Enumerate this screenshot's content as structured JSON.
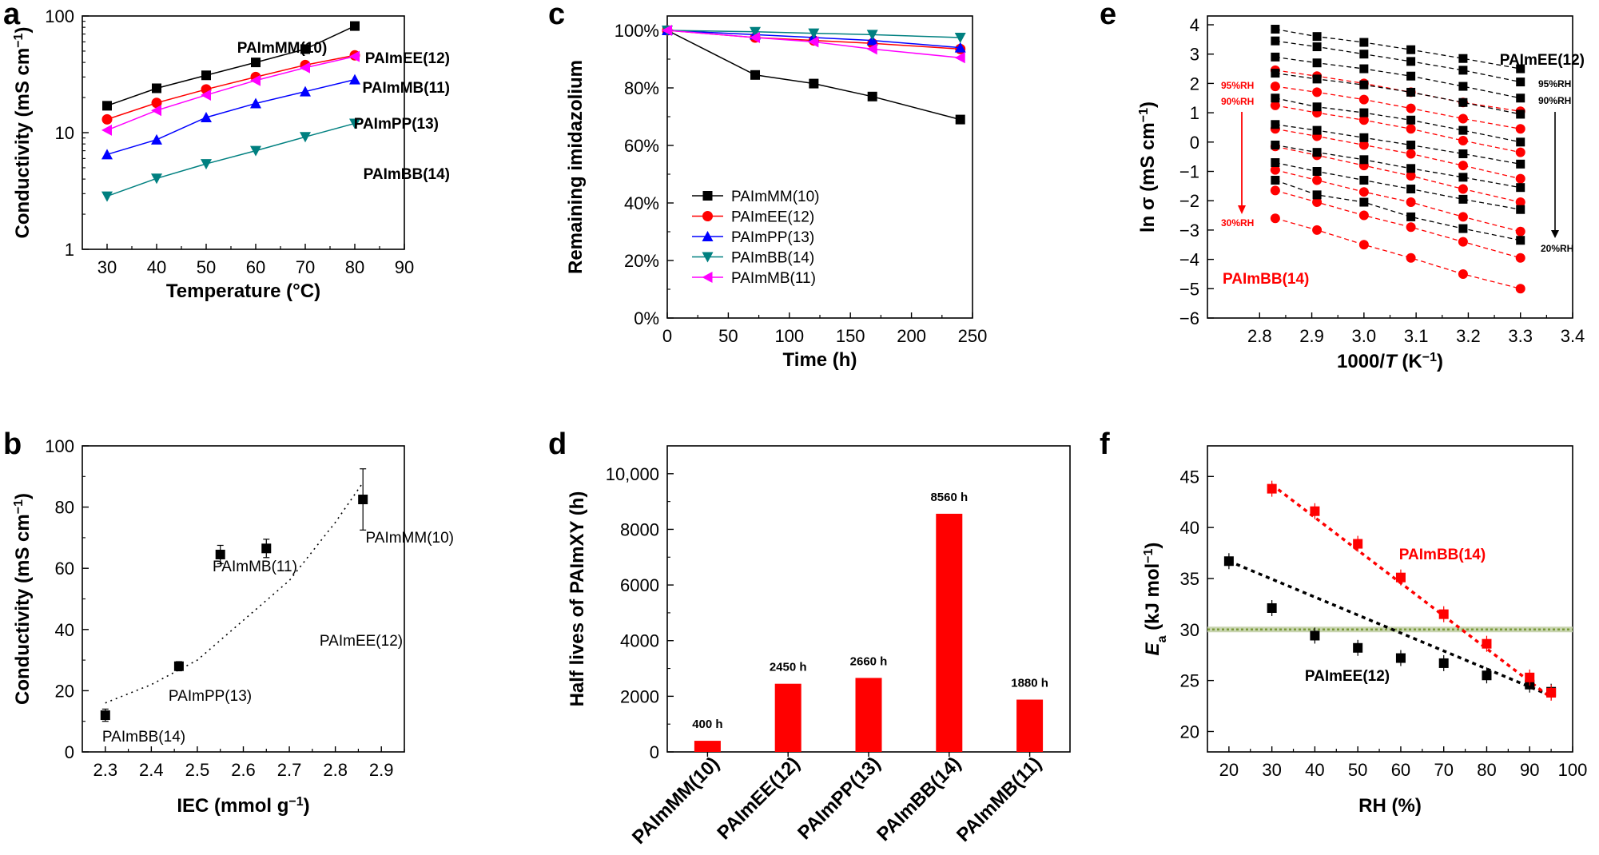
{
  "panel_labels": {
    "a": "a",
    "b": "b",
    "c": "c",
    "d": "d",
    "e": "e",
    "f": "f"
  },
  "chart_data": [
    {
      "id": "a",
      "type": "line",
      "yscale": "log",
      "xlabel": "Temperature (°C)",
      "ylabel": "Conductivity (mS cm",
      "ylabel_sup": "−1",
      "ylabel_end": ")",
      "xlim": [
        25,
        90
      ],
      "ylim": [
        1,
        100
      ],
      "xticks": [
        "30",
        "40",
        "50",
        "60",
        "70",
        "80",
        "90"
      ],
      "yticks": [
        "1",
        "10",
        "100"
      ],
      "series": [
        {
          "name": "PAImMM(10)",
          "color": "#000000",
          "marker": "square",
          "x": [
            30,
            40,
            50,
            60,
            70,
            80
          ],
          "y": [
            17,
            24,
            31,
            40,
            52,
            82
          ]
        },
        {
          "name": "PAImEE(12)",
          "color": "#ff0000",
          "marker": "circle",
          "x": [
            30,
            40,
            50,
            60,
            70,
            80
          ],
          "y": [
            13,
            18,
            23.5,
            30,
            38,
            46
          ]
        },
        {
          "name": "PAImMB(11)",
          "color": "#ff00ff",
          "marker": "tri-left",
          "x": [
            30,
            40,
            50,
            60,
            70,
            80
          ],
          "y": [
            10.5,
            15.5,
            21,
            28,
            36,
            45
          ]
        },
        {
          "name": "PAImPP(13)",
          "color": "#0000ff",
          "marker": "tri-up",
          "x": [
            30,
            40,
            50,
            60,
            70,
            80
          ],
          "y": [
            6.5,
            8.7,
            13.5,
            17.8,
            22.5,
            28.5
          ]
        },
        {
          "name": "PAImBB(14)",
          "color": "#008080",
          "marker": "tri-down",
          "x": [
            30,
            40,
            50,
            60,
            70,
            80
          ],
          "y": [
            2.85,
            4.05,
            5.4,
            7.0,
            9.2,
            12
          ]
        }
      ],
      "annotations": [
        "PAImMM(10)",
        "PAImEE(12)",
        "PAImMB(11)",
        "PAImPP(13)",
        "PAImBB(14)"
      ]
    },
    {
      "id": "b",
      "type": "scatter",
      "xlabel": "IEC (mmol g",
      "xlabel_sup": "−1",
      "xlabel_end": ")",
      "ylabel": "Conductivity (mS cm",
      "ylabel_sup": "−1",
      "ylabel_end": ")",
      "xlim": [
        2.25,
        2.95
      ],
      "ylim": [
        0,
        100
      ],
      "xticks": [
        "2.3",
        "2.4",
        "2.5",
        "2.6",
        "2.7",
        "2.8",
        "2.9"
      ],
      "yticks": [
        "0",
        "20",
        "40",
        "60",
        "80",
        "100"
      ],
      "points": [
        {
          "label": "PAImBB(14)",
          "x": 2.3,
          "y": 12
        },
        {
          "label": "PAImPP(13)",
          "x": 2.46,
          "y": 28
        },
        {
          "label": "PAImMB(11)",
          "x": 2.55,
          "y": 64.5
        },
        {
          "label": "PAImEE(12)",
          "x": 2.65,
          "y": 66.5
        },
        {
          "label": "PAImMM(10)",
          "x": 2.86,
          "y": 82.5
        }
      ],
      "fit": {
        "x": [
          2.3,
          2.4,
          2.5,
          2.6,
          2.7,
          2.8,
          2.86
        ],
        "y": [
          16,
          22,
          30,
          43,
          56,
          75,
          88
        ]
      }
    },
    {
      "id": "c",
      "type": "line",
      "xlabel": "Time (h)",
      "ylabel": "Remaining imidazolium",
      "xlim": [
        0,
        250
      ],
      "ylim": [
        0,
        105
      ],
      "xticks": [
        "0",
        "50",
        "100",
        "150",
        "200",
        "250"
      ],
      "yticks": [
        "0%",
        "20%",
        "40%",
        "60%",
        "80%",
        "100%"
      ],
      "series": [
        {
          "name": "PAImMM(10)",
          "color": "#000000",
          "marker": "square",
          "x": [
            0,
            72,
            120,
            168,
            240
          ],
          "y": [
            100,
            84.5,
            81.5,
            77,
            69
          ]
        },
        {
          "name": "PAImEE(12)",
          "color": "#ff0000",
          "marker": "circle",
          "x": [
            0,
            72,
            120,
            168,
            240
          ],
          "y": [
            100,
            97.5,
            96.5,
            95.5,
            93.5
          ]
        },
        {
          "name": "PAImPP(13)",
          "color": "#0000ff",
          "marker": "tri-up",
          "x": [
            0,
            72,
            120,
            168,
            240
          ],
          "y": [
            100,
            98.5,
            97.5,
            96.5,
            94
          ]
        },
        {
          "name": "PAImBB(14)",
          "color": "#008080",
          "marker": "tri-down",
          "x": [
            0,
            72,
            120,
            168,
            240
          ],
          "y": [
            100,
            99.5,
            99,
            98.5,
            97.5
          ]
        },
        {
          "name": "PAImMB(11)",
          "color": "#ff00ff",
          "marker": "tri-left",
          "x": [
            0,
            72,
            120,
            168,
            240
          ],
          "y": [
            100,
            97.5,
            96,
            93.5,
            90.5
          ]
        }
      ]
    },
    {
      "id": "d",
      "type": "bar",
      "ylabel": "Half lives of PAImXY (h)",
      "ylim": [
        0,
        11000
      ],
      "yticks": [
        "0",
        "2000",
        "4000",
        "6000",
        "8000",
        "10,000"
      ],
      "categories": [
        "PAImMM(10)",
        "PAImEE(12)",
        "PAImPP(13)",
        "PAImBB(14)",
        "PAImMB(11)"
      ],
      "values": [
        400,
        2450,
        2660,
        8560,
        1880
      ],
      "value_labels": [
        "400 h",
        "2450 h",
        "2660 h",
        "8560 h",
        "1880 h"
      ],
      "color": "#ff0000"
    },
    {
      "id": "e",
      "type": "line",
      "xlabel": "1000/",
      "xlabel_it": "T",
      "xlabel_unit": " (K",
      "xlabel_sup": "−1",
      "xlabel_end": ")",
      "ylabel": "ln σ (mS cm",
      "ylabel_sup": "−1",
      "ylabel_end": ")",
      "xlim": [
        2.7,
        3.4
      ],
      "ylim": [
        -6,
        4.3
      ],
      "xticks": [
        "2.8",
        "2.9",
        "3.0",
        "3.1",
        "3.2",
        "3.3",
        "3.4"
      ],
      "yticks": [
        "−6",
        "−5",
        "−4",
        "−3",
        "−2",
        "−1",
        "0",
        "1",
        "2",
        "3",
        "4"
      ],
      "x": [
        2.83,
        2.91,
        3.0,
        3.09,
        3.19,
        3.3
      ],
      "black_series": [
        {
          "name": "PAImEE(12) 95%RH",
          "y": [
            3.85,
            3.6,
            3.4,
            3.15,
            2.85,
            2.5
          ]
        },
        {
          "name": "PAImEE(12) 90%RH",
          "y": [
            3.45,
            3.25,
            3.0,
            2.75,
            2.45,
            2.05
          ]
        },
        {
          "name": "PAImEE(12) 80%RH",
          "y": [
            2.9,
            2.7,
            2.5,
            2.25,
            1.9,
            1.5
          ]
        },
        {
          "name": "PAImEE(12) 70%RH",
          "y": [
            2.35,
            2.15,
            1.95,
            1.7,
            1.35,
            0.95
          ]
        },
        {
          "name": "PAImEE(12) 60%RH",
          "y": [
            1.5,
            1.2,
            1.0,
            0.75,
            0.4,
            0.0
          ]
        },
        {
          "name": "PAImEE(12) 50%RH",
          "y": [
            0.6,
            0.4,
            0.15,
            -0.1,
            -0.4,
            -0.75
          ]
        },
        {
          "name": "PAImEE(12) 40%RH",
          "y": [
            -0.1,
            -0.35,
            -0.6,
            -0.9,
            -1.2,
            -1.55
          ]
        },
        {
          "name": "PAImEE(12) 30%RH",
          "y": [
            -0.7,
            -1.0,
            -1.3,
            -1.6,
            -1.95,
            -2.3
          ]
        },
        {
          "name": "PAImEE(12) 20%RH",
          "y": [
            -1.3,
            -1.8,
            -2.05,
            -2.55,
            -2.95,
            -3.35
          ]
        }
      ],
      "red_series": [
        {
          "name": "PAImBB(14) 95%RH",
          "y": [
            2.45,
            2.25,
            2.0,
            1.7,
            1.35,
            1.05
          ]
        },
        {
          "name": "PAImBB(14) 90%RH",
          "y": [
            1.9,
            1.7,
            1.45,
            1.15,
            0.8,
            0.45
          ]
        },
        {
          "name": "PAImBB(14) 80%RH",
          "y": [
            1.25,
            1.0,
            0.75,
            0.45,
            0.05,
            -0.35
          ]
        },
        {
          "name": "PAImBB(14) 70%RH",
          "y": [
            0.45,
            0.2,
            -0.1,
            -0.4,
            -0.8,
            -1.25
          ]
        },
        {
          "name": "PAImBB(14) 60%RH",
          "y": [
            -0.15,
            -0.45,
            -0.8,
            -1.15,
            -1.6,
            -2.05
          ]
        },
        {
          "name": "PAImBB(14) 50%RH",
          "y": [
            -0.95,
            -1.3,
            -1.7,
            -2.05,
            -2.55,
            -3.05
          ]
        },
        {
          "name": "PAImBB(14) 40%RH",
          "y": [
            -1.65,
            -2.05,
            -2.5,
            -2.9,
            -3.4,
            -3.95
          ]
        },
        {
          "name": "PAImBB(14) 30%RH",
          "y": [
            -2.6,
            -3.0,
            -3.5,
            -3.95,
            -4.5,
            -5.0
          ]
        }
      ],
      "annotations": {
        "black_name": "PAImEE(12)",
        "red_name": "PAImBB(14)",
        "black_top": "95%RH",
        "black_second": "90%RH",
        "black_bottom": "20%RH",
        "red_top": "95%RH",
        "red_second": "90%RH",
        "red_bottom": "30%RH"
      }
    },
    {
      "id": "f",
      "type": "scatter",
      "xlabel": "RH (%)",
      "ylabel_it": "E",
      "ylabel_sub": "a",
      "ylabel": " (kJ mol",
      "ylabel_sup": "−1",
      "ylabel_end": ")",
      "xlim": [
        15,
        100
      ],
      "ylim": [
        18,
        48
      ],
      "xticks": [
        "20",
        "30",
        "40",
        "50",
        "60",
        "70",
        "80",
        "90",
        "100"
      ],
      "yticks": [
        "20",
        "25",
        "30",
        "35",
        "40",
        "45"
      ],
      "series": [
        {
          "name": "PAImEE(12)",
          "color": "#000000",
          "marker": "square",
          "x": [
            20,
            30,
            40,
            50,
            60,
            70,
            80,
            90,
            95
          ],
          "y": [
            36.7,
            32.1,
            29.4,
            28.2,
            27.2,
            26.7,
            25.5,
            24.6,
            23.9
          ]
        },
        {
          "name": "PAImBB(14)",
          "color": "#ff0000",
          "marker": "square",
          "x": [
            30,
            40,
            50,
            60,
            70,
            80,
            90,
            95
          ],
          "y": [
            43.8,
            41.6,
            38.4,
            35.1,
            31.5,
            28.6,
            25.3,
            23.8
          ]
        }
      ],
      "fits": [
        {
          "color": "#000000",
          "x": [
            20,
            95
          ],
          "y": [
            36.7,
            23.5
          ]
        },
        {
          "color": "#ff0000",
          "x": [
            30,
            95
          ],
          "y": [
            44.2,
            23.3
          ]
        }
      ],
      "hline": {
        "y": 30,
        "color": "#7a9a3a"
      }
    }
  ]
}
